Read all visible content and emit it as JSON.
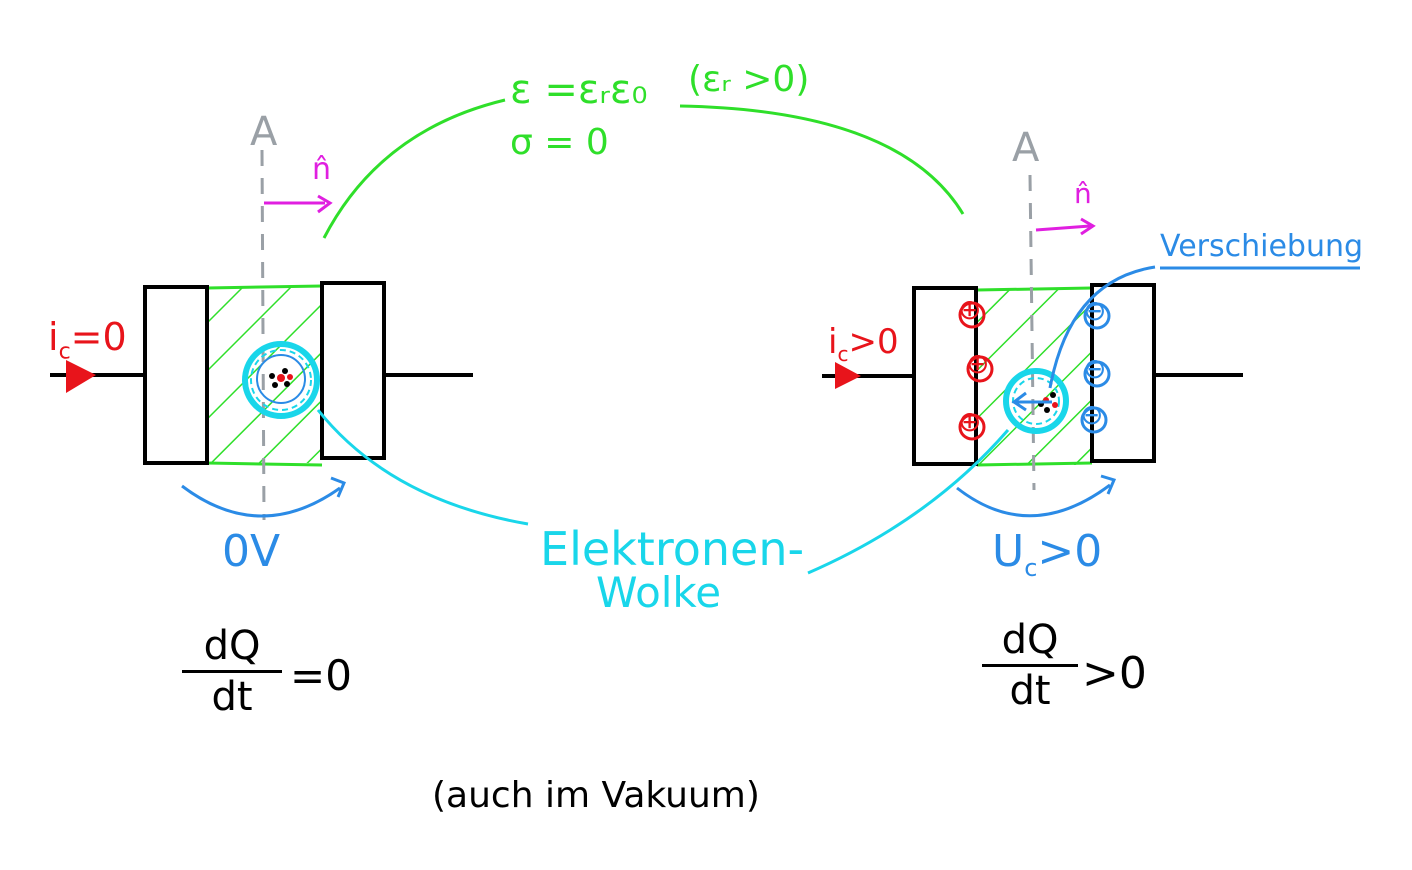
{
  "left": {
    "current_label": "i",
    "current_sub": "c",
    "current_rel": "=0",
    "axis_label": "A",
    "normal_label": "n̂",
    "voltage_label": "0V",
    "frac_num": "dQ",
    "frac_den": "dt",
    "frac_rel": "=0"
  },
  "right": {
    "current_label": "i",
    "current_sub": "c",
    "current_rel": ">0",
    "axis_label": "A",
    "normal_label": "n̂",
    "voltage_label": "U",
    "voltage_sub": "c",
    "voltage_rel": ">0",
    "frac_num": "dQ",
    "frac_den": "dt",
    "frac_rel": ">0",
    "plus_signs": [
      "⊕",
      "⊕",
      "⊕"
    ],
    "minus_signs": [
      "⊖",
      "⊖",
      "⊖"
    ]
  },
  "dielectric": {
    "line1": "ε =εᵣε₀",
    "line1_note": "(εᵣ >0)",
    "line2": "σ = 0"
  },
  "cloud_label": {
    "line1": "Elektronen-",
    "line2": "Wolke"
  },
  "displacement_label": "Verschiebung",
  "footer_note": "(auch im Vakuum)",
  "colors": {
    "red": "#e8141b",
    "blue": "#2b8be6",
    "cyan": "#19d6ea",
    "green": "#2fdf2a",
    "gray": "#9aa0a6",
    "magenta": "#e01fe0",
    "black": "#000000"
  }
}
